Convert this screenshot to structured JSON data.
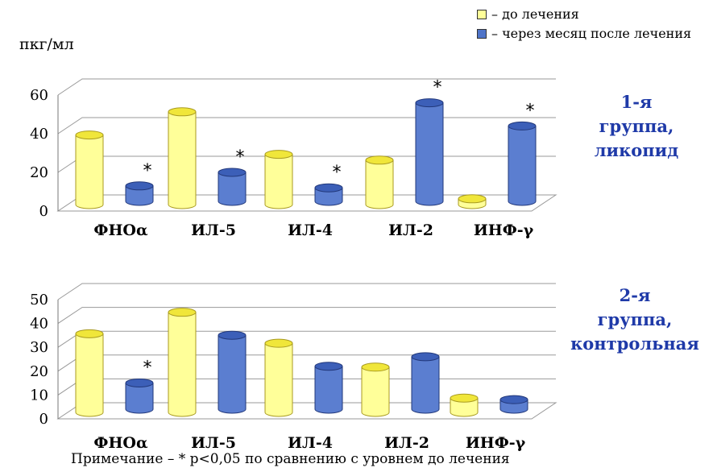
{
  "legend": {
    "before_label": "– до лечения",
    "after_label": "– через месяц после лечения"
  },
  "colors": {
    "before": "#ffff99",
    "after": "#4f74c8"
  },
  "unit_label": "пкг/мл",
  "group_labels": {
    "g1": [
      "1-я",
      "группа,",
      "ликопид"
    ],
    "g2": [
      "2-я",
      "группа,",
      "контрольная"
    ]
  },
  "note": "Примечание – * р<0,05 по сравнению с уровнем до лечения",
  "chart_data": [
    {
      "type": "bar",
      "categories": [
        "ФНОα",
        "ИЛ-5",
        "ИЛ-4",
        "ИЛ-2",
        "ИНФ-γ"
      ],
      "series": [
        {
          "values": [
            36,
            48,
            26,
            23,
            3
          ]
        },
        {
          "values": [
            8,
            15,
            7,
            51,
            39
          ]
        }
      ],
      "significant_after": [
        true,
        true,
        true,
        true,
        true
      ],
      "significance_marker": "*",
      "ylim": [
        0,
        60
      ],
      "yticks": [
        "0",
        "20",
        "40",
        "60"
      ],
      "grid": true
    },
    {
      "type": "bar",
      "categories": [
        "ФНОα",
        "ИЛ-5",
        "ИЛ-4",
        "ИЛ-2",
        "ИНФ-γ"
      ],
      "series": [
        {
          "values": [
            33,
            42,
            29,
            19,
            6
          ]
        },
        {
          "values": [
            11,
            31,
            18,
            22,
            4
          ]
        }
      ],
      "significant_after": [
        true,
        false,
        false,
        false,
        false
      ],
      "significance_marker": "*",
      "ylim": [
        0,
        50
      ],
      "yticks": [
        "0",
        "10",
        "20",
        "30",
        "40",
        "50"
      ],
      "grid": true
    }
  ]
}
